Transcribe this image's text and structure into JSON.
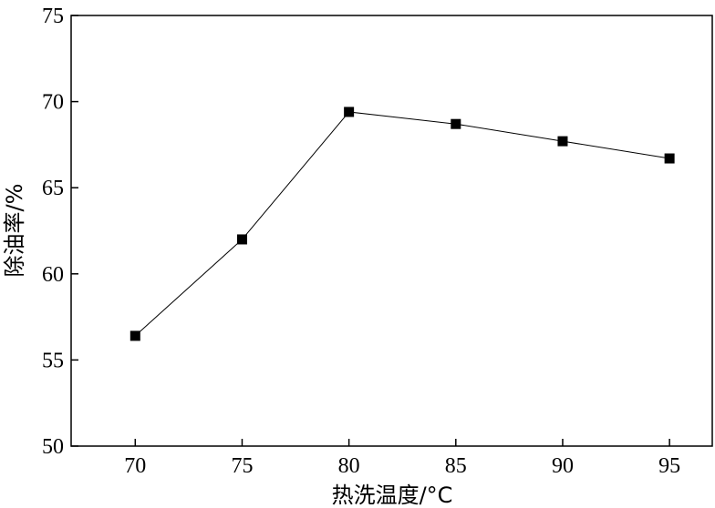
{
  "chart_data": {
    "type": "line",
    "xlabel": "热洗温度/°C",
    "ylabel": "除油率/%",
    "x": [
      70,
      75,
      80,
      85,
      90,
      95
    ],
    "series": [
      {
        "values": [
          56.4,
          62.0,
          69.4,
          68.7,
          67.7,
          66.7
        ],
        "marker": "square",
        "color": "#000000"
      }
    ],
    "x_ticks": [
      "70",
      "75",
      "80",
      "85",
      "90",
      "95"
    ],
    "y_ticks": [
      "50",
      "55",
      "60",
      "65",
      "70",
      "75"
    ],
    "xlim": [
      67,
      97
    ],
    "ylim": [
      50,
      75
    ],
    "grid": false
  }
}
